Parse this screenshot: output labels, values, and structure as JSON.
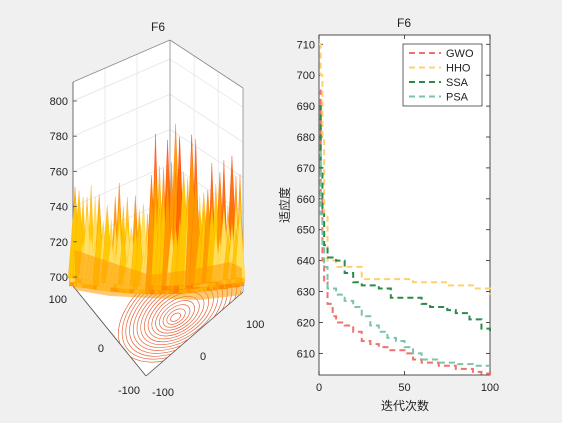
{
  "window": {
    "background": "#f0f0f0"
  },
  "charts": [
    {
      "type": "surface3d",
      "title": "F6",
      "zlim": [
        690,
        800
      ],
      "z_ticks": [
        "700",
        "720",
        "740",
        "760",
        "780",
        "800"
      ],
      "x_ticks": [
        "-100",
        "0",
        "100"
      ],
      "y_ticks": [
        "-100",
        "0",
        "100"
      ],
      "colormap": [
        "#ff2a00",
        "#ff6a00",
        "#ff9a00",
        "#ffc800",
        "#ffe066"
      ],
      "contour_color": "#e04a1a"
    }
  ],
  "chart_data": {
    "type": "line",
    "title": "F6",
    "xlabel": "迭代次数",
    "ylabel": "适应度",
    "xlim": [
      0,
      100
    ],
    "ylim": [
      603,
      713
    ],
    "x_ticks": [
      "0",
      "50",
      "100"
    ],
    "y_ticks": [
      "610",
      "620",
      "630",
      "640",
      "650",
      "660",
      "670",
      "680",
      "690",
      "700",
      "710"
    ],
    "legend_position": "top-right",
    "series": [
      {
        "name": "GWO",
        "color": "#f07070",
        "points": [
          [
            0,
            695
          ],
          [
            1,
            660
          ],
          [
            2,
            640
          ],
          [
            3,
            633
          ],
          [
            5,
            626
          ],
          [
            8,
            622
          ],
          [
            10,
            620
          ],
          [
            15,
            619
          ],
          [
            20,
            617
          ],
          [
            25,
            614
          ],
          [
            30,
            613
          ],
          [
            35,
            612
          ],
          [
            40,
            611
          ],
          [
            50,
            610
          ],
          [
            55,
            608
          ],
          [
            60,
            607
          ],
          [
            70,
            606
          ],
          [
            80,
            605
          ],
          [
            90,
            604
          ],
          [
            95,
            603.5
          ],
          [
            100,
            603
          ]
        ]
      },
      {
        "name": "HHO",
        "color": "#ffd070",
        "points": [
          [
            0,
            710
          ],
          [
            1,
            700
          ],
          [
            2,
            680
          ],
          [
            3,
            655
          ],
          [
            5,
            640
          ],
          [
            10,
            638
          ],
          [
            20,
            638
          ],
          [
            25,
            634
          ],
          [
            40,
            634
          ],
          [
            55,
            633
          ],
          [
            75,
            632
          ],
          [
            90,
            631
          ],
          [
            100,
            629
          ]
        ]
      },
      {
        "name": "SSA",
        "color": "#2a8a4a",
        "points": [
          [
            0,
            690
          ],
          [
            1,
            670
          ],
          [
            2,
            655
          ],
          [
            3,
            645
          ],
          [
            5,
            641
          ],
          [
            10,
            640
          ],
          [
            15,
            636
          ],
          [
            20,
            633
          ],
          [
            25,
            632
          ],
          [
            35,
            631
          ],
          [
            42,
            628
          ],
          [
            55,
            628
          ],
          [
            60,
            626
          ],
          [
            65,
            625
          ],
          [
            75,
            624
          ],
          [
            80,
            623
          ],
          [
            88,
            621
          ],
          [
            95,
            618
          ],
          [
            100,
            617
          ]
        ]
      },
      {
        "name": "PSA",
        "color": "#7cc4a4",
        "points": [
          [
            0,
            675
          ],
          [
            1,
            655
          ],
          [
            2,
            645
          ],
          [
            3,
            638
          ],
          [
            5,
            631
          ],
          [
            10,
            629
          ],
          [
            15,
            627
          ],
          [
            20,
            625
          ],
          [
            25,
            622
          ],
          [
            30,
            619
          ],
          [
            35,
            617
          ],
          [
            40,
            615
          ],
          [
            45,
            614
          ],
          [
            50,
            612
          ],
          [
            55,
            610
          ],
          [
            60,
            608
          ],
          [
            70,
            607
          ],
          [
            80,
            606.5
          ],
          [
            90,
            606
          ],
          [
            100,
            606
          ]
        ]
      }
    ]
  }
}
